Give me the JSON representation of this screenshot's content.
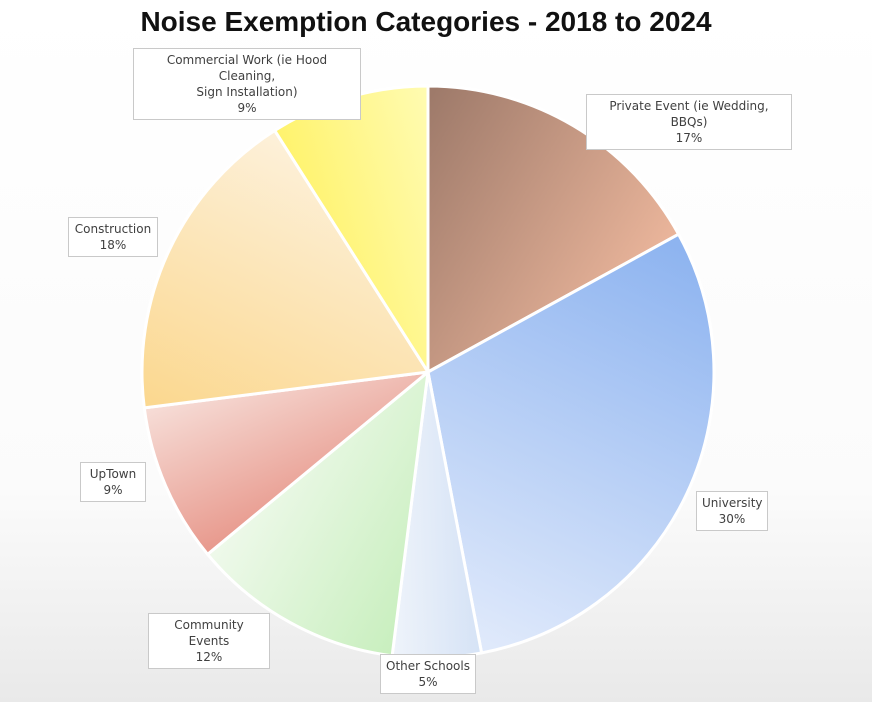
{
  "chart_data": {
    "type": "pie",
    "title": "Noise Exemption Categories - 2018 to 2024",
    "slices": [
      {
        "label": "Private Event (ie Wedding, BBQs)",
        "label_lines": [
          "Private Event (ie Wedding, BBQs)"
        ],
        "value": 17,
        "value_label": "17%",
        "color_a": "#9e7a6a",
        "color_b": "#e9b49a"
      },
      {
        "label": "University",
        "label_lines": [
          "University"
        ],
        "value": 30,
        "value_label": "30%",
        "color_a": "#8eb4f0",
        "color_b": "#dfe9fb"
      },
      {
        "label": "Other Schools",
        "label_lines": [
          "Other Schools"
        ],
        "value": 5,
        "value_label": "5%",
        "color_a": "#d6e3f6",
        "color_b": "#eef3fa"
      },
      {
        "label": "Community Events",
        "label_lines": [
          "Community Events"
        ],
        "value": 12,
        "value_label": "12%",
        "color_a": "#c9efbf",
        "color_b": "#eef9ea"
      },
      {
        "label": "UpTown",
        "label_lines": [
          "UpTown"
        ],
        "value": 9,
        "value_label": "9%",
        "color_a": "#e89a8e",
        "color_b": "#f6dcd6"
      },
      {
        "label": "Construction",
        "label_lines": [
          "Construction"
        ],
        "value": 18,
        "value_label": "18%",
        "color_a": "#fbd890",
        "color_b": "#fdf0d8"
      },
      {
        "label": "Commercial Work (ie Hood Cleaning, Sign Installation)",
        "label_lines": [
          "Commercial Work (ie Hood Cleaning,",
          "Sign Installation)"
        ],
        "value": 9,
        "value_label": "9%",
        "color_a": "#fff36e",
        "color_b": "#fffbb0"
      }
    ]
  }
}
